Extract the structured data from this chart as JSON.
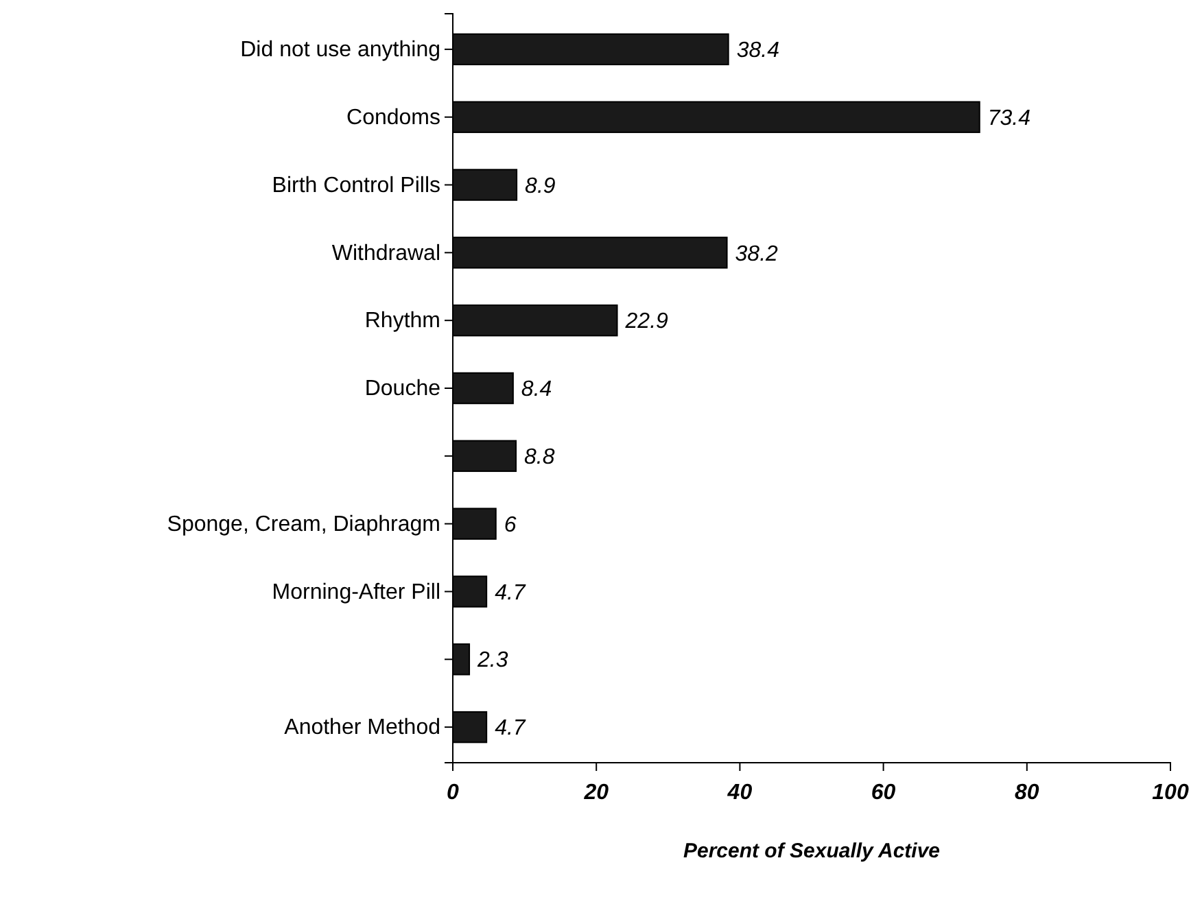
{
  "chart_data": {
    "type": "bar",
    "orientation": "horizontal",
    "xlabel": "Percent of Sexually Active",
    "categories": [
      "Did not use anything",
      "Condoms",
      "Birth Control Pills",
      "Withdrawal",
      "Rhythm",
      "Douche",
      null,
      "Sponge, Cream, Diaphragm",
      "Morning-After Pill",
      null,
      "Another Method"
    ],
    "values": [
      38.4,
      73.4,
      8.9,
      38.2,
      22.9,
      8.4,
      8.8,
      6,
      4.7,
      2.3,
      4.7
    ],
    "color": "#1a1a1a",
    "xlim": [
      0,
      100
    ],
    "xticks": [
      0,
      20,
      40,
      60,
      80,
      100
    ],
    "data_labels": true,
    "grid": false
  }
}
